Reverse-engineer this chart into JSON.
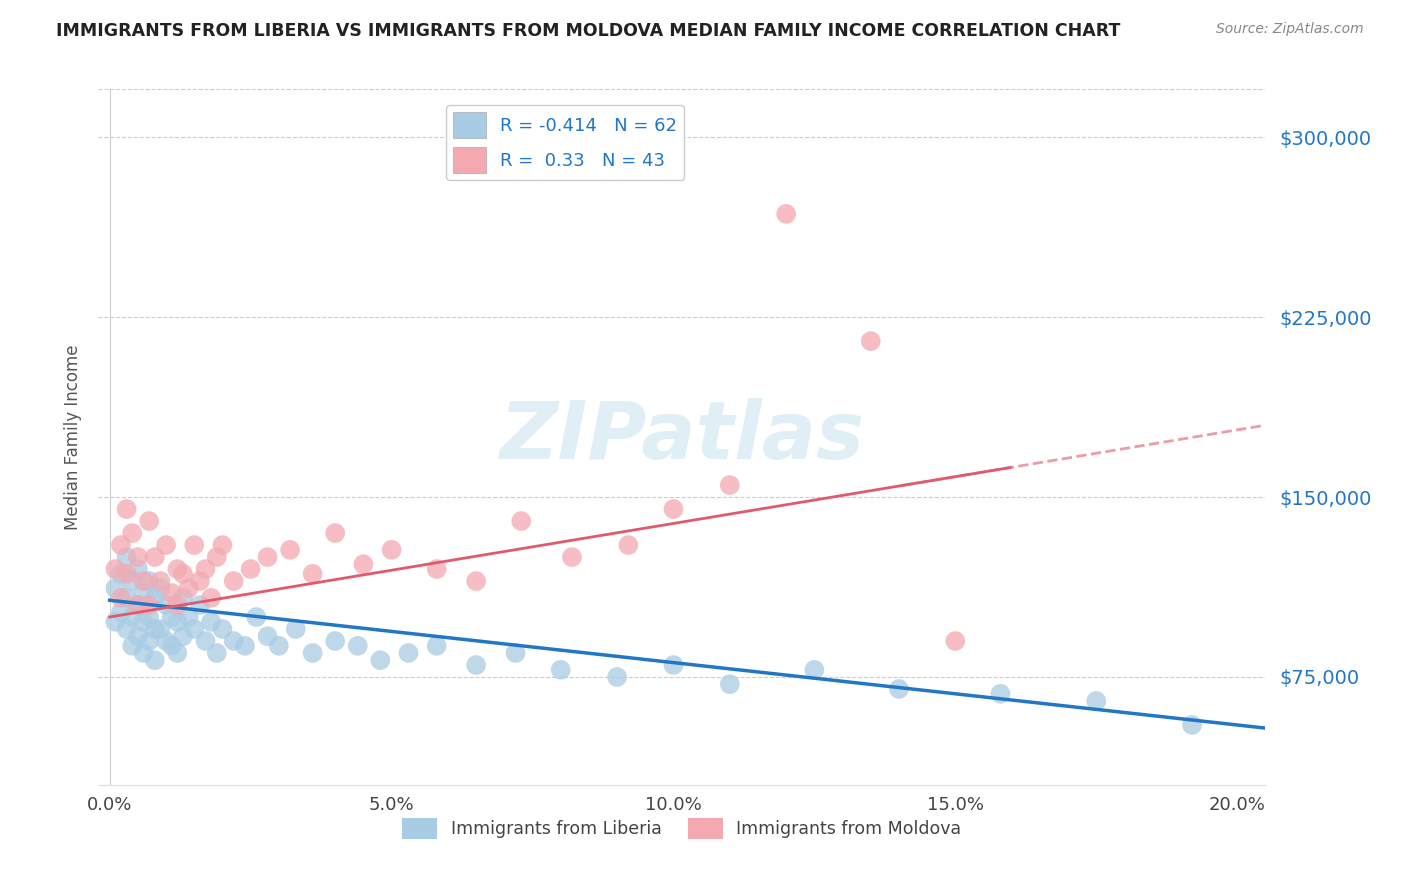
{
  "title": "IMMIGRANTS FROM LIBERIA VS IMMIGRANTS FROM MOLDOVA MEDIAN FAMILY INCOME CORRELATION CHART",
  "source": "Source: ZipAtlas.com",
  "ylabel": "Median Family Income",
  "xlim": [
    -0.002,
    0.205
  ],
  "ylim": [
    30000,
    320000
  ],
  "yticks": [
    75000,
    150000,
    225000,
    300000
  ],
  "xticks": [
    0.0,
    0.05,
    0.1,
    0.15,
    0.2
  ],
  "xtick_labels": [
    "0.0%",
    "5.0%",
    "10.0%",
    "15.0%",
    "20.0%"
  ],
  "ytick_labels": [
    "$75,000",
    "$150,000",
    "$225,000",
    "$300,000"
  ],
  "liberia_R": -0.414,
  "liberia_N": 62,
  "moldova_R": 0.33,
  "moldova_N": 43,
  "liberia_color": "#a8cce4",
  "moldova_color": "#f4a8b0",
  "liberia_line_color": "#2176c7",
  "moldova_line_color": "#e05a6e",
  "background_color": "#ffffff",
  "liberia_x": [
    0.001,
    0.001,
    0.002,
    0.002,
    0.003,
    0.003,
    0.003,
    0.004,
    0.004,
    0.004,
    0.005,
    0.005,
    0.005,
    0.006,
    0.006,
    0.006,
    0.007,
    0.007,
    0.007,
    0.008,
    0.008,
    0.008,
    0.009,
    0.009,
    0.01,
    0.01,
    0.011,
    0.011,
    0.012,
    0.012,
    0.013,
    0.013,
    0.014,
    0.015,
    0.016,
    0.017,
    0.018,
    0.019,
    0.02,
    0.022,
    0.024,
    0.026,
    0.028,
    0.03,
    0.033,
    0.036,
    0.04,
    0.044,
    0.048,
    0.053,
    0.058,
    0.065,
    0.072,
    0.08,
    0.09,
    0.1,
    0.11,
    0.125,
    0.14,
    0.158,
    0.175,
    0.192
  ],
  "liberia_y": [
    112000,
    98000,
    118000,
    102000,
    125000,
    108000,
    95000,
    115000,
    100000,
    88000,
    120000,
    105000,
    92000,
    110000,
    98000,
    85000,
    115000,
    100000,
    90000,
    108000,
    95000,
    82000,
    112000,
    95000,
    105000,
    90000,
    100000,
    88000,
    98000,
    85000,
    108000,
    92000,
    100000,
    95000,
    105000,
    90000,
    98000,
    85000,
    95000,
    90000,
    88000,
    100000,
    92000,
    88000,
    95000,
    85000,
    90000,
    88000,
    82000,
    85000,
    88000,
    80000,
    85000,
    78000,
    75000,
    80000,
    72000,
    78000,
    70000,
    68000,
    65000,
    55000
  ],
  "moldova_x": [
    0.001,
    0.002,
    0.002,
    0.003,
    0.003,
    0.004,
    0.005,
    0.005,
    0.006,
    0.007,
    0.007,
    0.008,
    0.009,
    0.01,
    0.011,
    0.012,
    0.012,
    0.013,
    0.014,
    0.015,
    0.016,
    0.017,
    0.018,
    0.019,
    0.02,
    0.022,
    0.025,
    0.028,
    0.032,
    0.036,
    0.04,
    0.045,
    0.05,
    0.058,
    0.065,
    0.073,
    0.082,
    0.092,
    0.1,
    0.11,
    0.12,
    0.135,
    0.15
  ],
  "moldova_y": [
    120000,
    130000,
    108000,
    145000,
    118000,
    135000,
    125000,
    105000,
    115000,
    140000,
    105000,
    125000,
    115000,
    130000,
    110000,
    120000,
    105000,
    118000,
    112000,
    130000,
    115000,
    120000,
    108000,
    125000,
    130000,
    115000,
    120000,
    125000,
    128000,
    118000,
    135000,
    122000,
    128000,
    120000,
    115000,
    140000,
    125000,
    130000,
    145000,
    155000,
    268000,
    215000,
    90000
  ]
}
